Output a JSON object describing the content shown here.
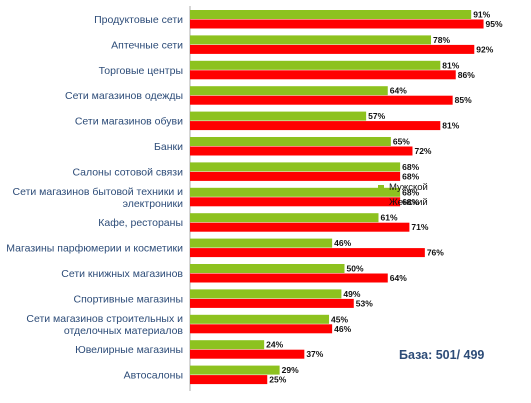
{
  "chart_data": {
    "type": "bar",
    "orientation": "horizontal",
    "categories": [
      [
        "Продуктовые сети"
      ],
      [
        "Аптечные сети"
      ],
      [
        "Торговые центры"
      ],
      [
        "Сети магазинов одежды"
      ],
      [
        "Сети магазинов обуви"
      ],
      [
        "Банки"
      ],
      [
        "Салоны сотовой связи"
      ],
      [
        "Сети магазинов бытовой техники и",
        "электроники"
      ],
      [
        "Кафе, рестораны"
      ],
      [
        "Магазины парфюмерии и косметики"
      ],
      [
        "Сети книжных магазинов"
      ],
      [
        "Спортивные магазины"
      ],
      [
        "Сети магазинов строительных и",
        "отделочных материалов"
      ],
      [
        "Ювелирные магазины"
      ],
      [
        "Автосалоны"
      ]
    ],
    "series": [
      {
        "name": "Мужской",
        "color": "#8dc21f",
        "values": [
          91,
          78,
          81,
          64,
          57,
          65,
          68,
          68,
          61,
          46,
          50,
          49,
          45,
          24,
          29
        ],
        "labels": [
          "91%",
          "78%",
          "81%",
          "64%",
          "57%",
          "65%",
          "68%",
          "68%",
          "61%",
          "46%",
          "50%",
          "49%",
          "45%",
          "24%",
          "29%"
        ]
      },
      {
        "name": "Женский",
        "color": "#ff0000",
        "values": [
          95,
          92,
          86,
          85,
          81,
          72,
          68,
          68,
          71,
          76,
          64,
          53,
          46,
          37,
          25
        ],
        "labels": [
          "95%",
          "92%",
          "86%",
          "85%",
          "81%",
          "72%",
          "68%",
          "68%",
          "71%",
          "76%",
          "64%",
          "53%",
          "46%",
          "37%",
          "25%"
        ]
      }
    ],
    "xlim": [
      0,
      100
    ],
    "legend_position": "right",
    "grid": false,
    "title": "",
    "xlabel": "",
    "ylabel": ""
  },
  "legend": {
    "items": [
      {
        "label": "Мужской",
        "color": "#8dc21f"
      },
      {
        "label": "Женский",
        "color": "#ff0000"
      }
    ]
  },
  "note": "База: 501/ 499"
}
